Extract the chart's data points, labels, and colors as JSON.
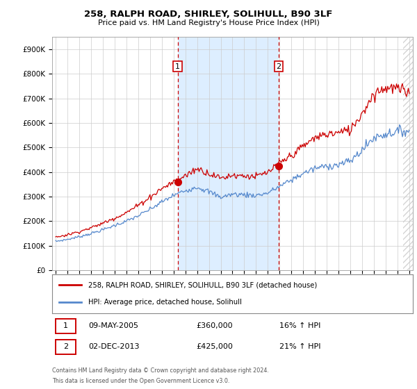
{
  "title": "258, RALPH ROAD, SHIRLEY, SOLIHULL, B90 3LF",
  "subtitle": "Price paid vs. HM Land Registry's House Price Index (HPI)",
  "ylabel_ticks": [
    "£0",
    "£100K",
    "£200K",
    "£300K",
    "£400K",
    "£500K",
    "£600K",
    "£700K",
    "£800K",
    "£900K"
  ],
  "ytick_values": [
    0,
    100000,
    200000,
    300000,
    400000,
    500000,
    600000,
    700000,
    800000,
    900000
  ],
  "ylim": [
    0,
    950000
  ],
  "xlim_left": 1994.7,
  "xlim_right": 2025.3,
  "sale1_date": "09-MAY-2005",
  "sale1_price": 360000,
  "sale1_hpi": "16% ↑ HPI",
  "sale2_date": "02-DEC-2013",
  "sale2_price": 425000,
  "sale2_hpi": "21% ↑ HPI",
  "legend_line1": "258, RALPH ROAD, SHIRLEY, SOLIHULL, B90 3LF (detached house)",
  "legend_line2": "HPI: Average price, detached house, Solihull",
  "footer1": "Contains HM Land Registry data © Crown copyright and database right 2024.",
  "footer2": "This data is licensed under the Open Government Licence v3.0.",
  "line_color_red": "#cc0000",
  "line_color_blue": "#5588cc",
  "vline_color": "#cc0000",
  "shade_color": "#ddeeff",
  "plot_bg": "#ffffff",
  "grid_color": "#cccccc",
  "sale1_x": 2005.35,
  "sale2_x": 2013.92
}
